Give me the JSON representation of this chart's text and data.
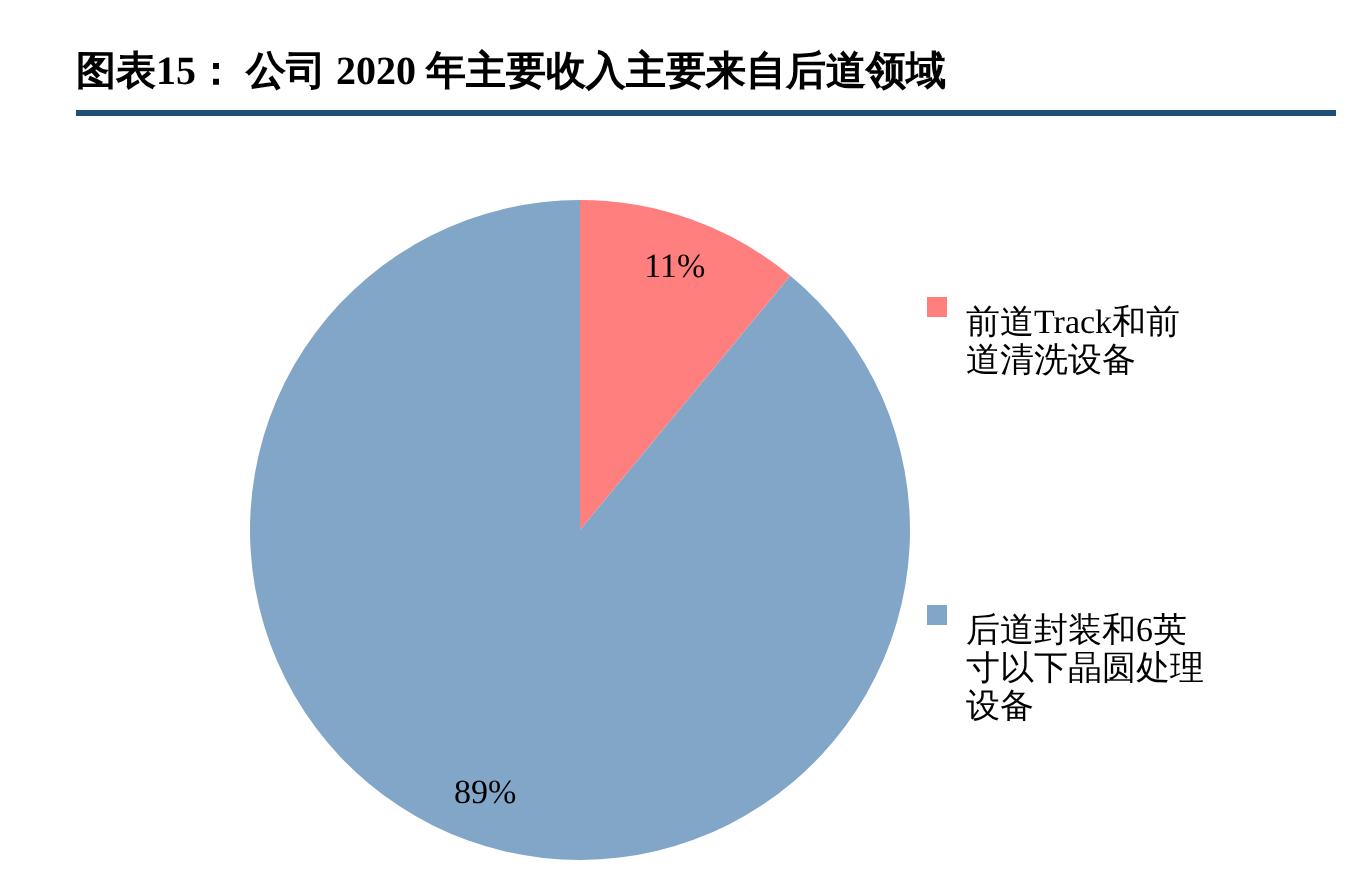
{
  "chart_data": {
    "type": "pie",
    "title": "图表15： 公司 2020 年主要收入主要来自后道领域",
    "categories": [
      "前道Track和前道清洗设备",
      "后道封装和6英寸以下晶圆处理设备"
    ],
    "values": [
      11,
      89
    ],
    "colors": [
      "#ff7f7f",
      "#82a6c8"
    ],
    "value_labels": [
      "11%",
      "89%"
    ],
    "legend": "right"
  }
}
